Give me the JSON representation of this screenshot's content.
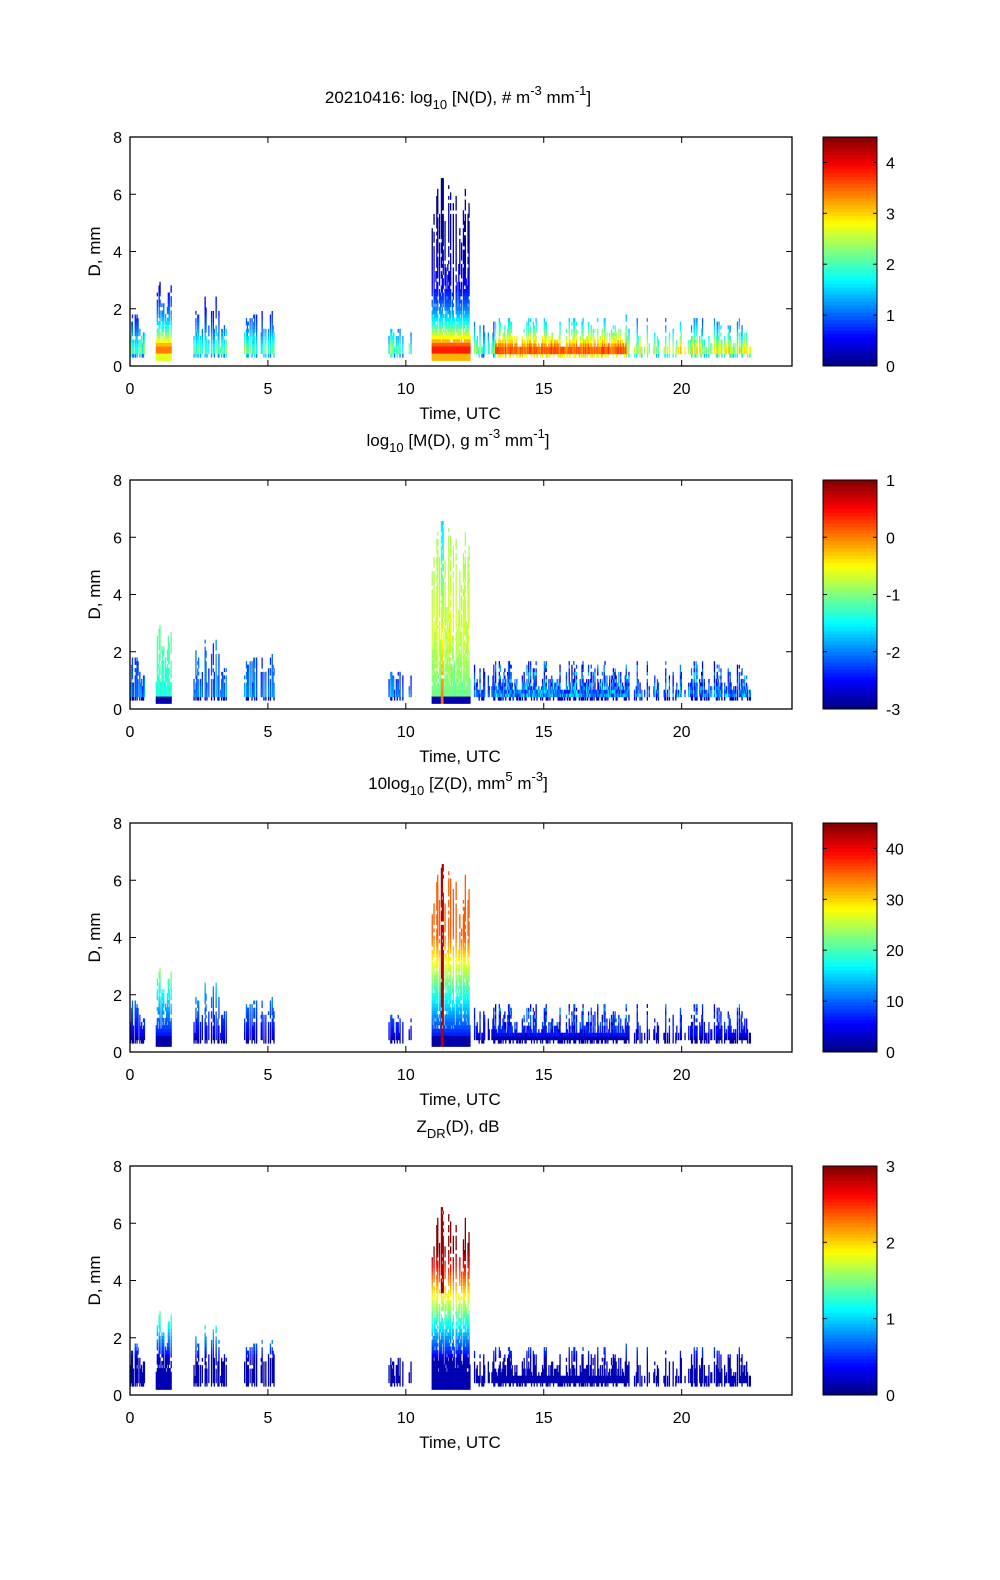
{
  "chart_data": [
    {
      "type": "heatmap",
      "date": "20210416",
      "title": {
        "prefix": "20210416: log",
        "sub": "10",
        "body": " [N(D), # m",
        "sup1": "-3",
        "mid": " mm",
        "sup2": "-1",
        "end": "]"
      },
      "xlabel": "Time, UTC",
      "ylabel": "D, mm",
      "xlim": [
        0,
        24
      ],
      "ylim": [
        0,
        8
      ],
      "xticks": [
        "0",
        "5",
        "10",
        "15",
        "20"
      ],
      "yticks": [
        "0",
        "2",
        "4",
        "6",
        "8"
      ],
      "colorbar": {
        "range": [
          0,
          4.5
        ],
        "ticks": [
          "0",
          "1",
          "2",
          "3",
          "4"
        ],
        "tick_values": [
          0,
          1,
          2,
          3,
          4
        ],
        "colormap": "jet"
      },
      "peak_value_near_11.3UTC": 4.2,
      "max_D_mm": 6.5
    },
    {
      "type": "heatmap",
      "title": {
        "prefix": "log",
        "sub": "10",
        "body": " [M(D), g m",
        "sup1": "-3",
        "mid": " mm",
        "sup2": "-1",
        "end": "]"
      },
      "xlabel": "Time, UTC",
      "ylabel": "D, mm",
      "xlim": [
        0,
        24
      ],
      "ylim": [
        0,
        8
      ],
      "xticks": [
        "0",
        "5",
        "10",
        "15",
        "20"
      ],
      "yticks": [
        "0",
        "2",
        "4",
        "6",
        "8"
      ],
      "colorbar": {
        "range": [
          -3,
          1
        ],
        "ticks": [
          "1",
          "0",
          "-1",
          "-2",
          "-3"
        ],
        "tick_values": [
          1,
          0,
          -1,
          -2,
          -3
        ],
        "colormap": "jet"
      },
      "max_D_mm": 6.5
    },
    {
      "type": "heatmap",
      "title": {
        "prefix": "10log",
        "sub": "10",
        "body": " [Z(D),  mm",
        "sup1": "5",
        "mid": " m",
        "sup2": "-3",
        "end": "]"
      },
      "xlabel": "Time, UTC",
      "ylabel": "D, mm",
      "xlim": [
        0,
        24
      ],
      "ylim": [
        0,
        8
      ],
      "xticks": [
        "0",
        "5",
        "10",
        "15",
        "20"
      ],
      "yticks": [
        "0",
        "2",
        "4",
        "6",
        "8"
      ],
      "colorbar": {
        "range": [
          0,
          45
        ],
        "ticks": [
          "0",
          "10",
          "20",
          "30",
          "40"
        ],
        "tick_values": [
          0,
          10,
          20,
          30,
          40
        ],
        "colormap": "jet"
      },
      "max_D_mm": 6.5
    },
    {
      "type": "heatmap",
      "title": {
        "prefix": "Z",
        "sub": "DR",
        "body": "(D), dB",
        "sup1": "",
        "mid": "",
        "sup2": "",
        "end": ""
      },
      "xlabel": "Time, UTC",
      "ylabel": "D, mm",
      "xlim": [
        0,
        24
      ],
      "ylim": [
        0,
        8
      ],
      "xticks": [
        "0",
        "5",
        "10",
        "15",
        "20"
      ],
      "yticks": [
        "0",
        "2",
        "4",
        "6",
        "8"
      ],
      "colorbar": {
        "range": [
          0,
          3
        ],
        "ticks": [
          "0",
          "1",
          "2",
          "3"
        ],
        "tick_values": [
          0,
          1,
          2,
          3
        ],
        "colormap": "jet"
      },
      "max_D_mm": 6.5
    }
  ],
  "precip_events": [
    {
      "start_utc": 0.0,
      "end_utc": 0.5,
      "max_D": 1.8
    },
    {
      "start_utc": 0.9,
      "end_utc": 1.5,
      "max_D": 3.3
    },
    {
      "start_utc": 2.3,
      "end_utc": 3.5,
      "max_D": 2.3
    },
    {
      "start_utc": 4.1,
      "end_utc": 5.2,
      "max_D": 1.9
    },
    {
      "start_utc": 9.2,
      "end_utc": 10.2,
      "max_D": 1.3
    },
    {
      "start_utc": 10.9,
      "end_utc": 12.3,
      "max_D": 6.5
    },
    {
      "start_utc": 12.3,
      "end_utc": 22.5,
      "max_D": 1.7
    }
  ]
}
